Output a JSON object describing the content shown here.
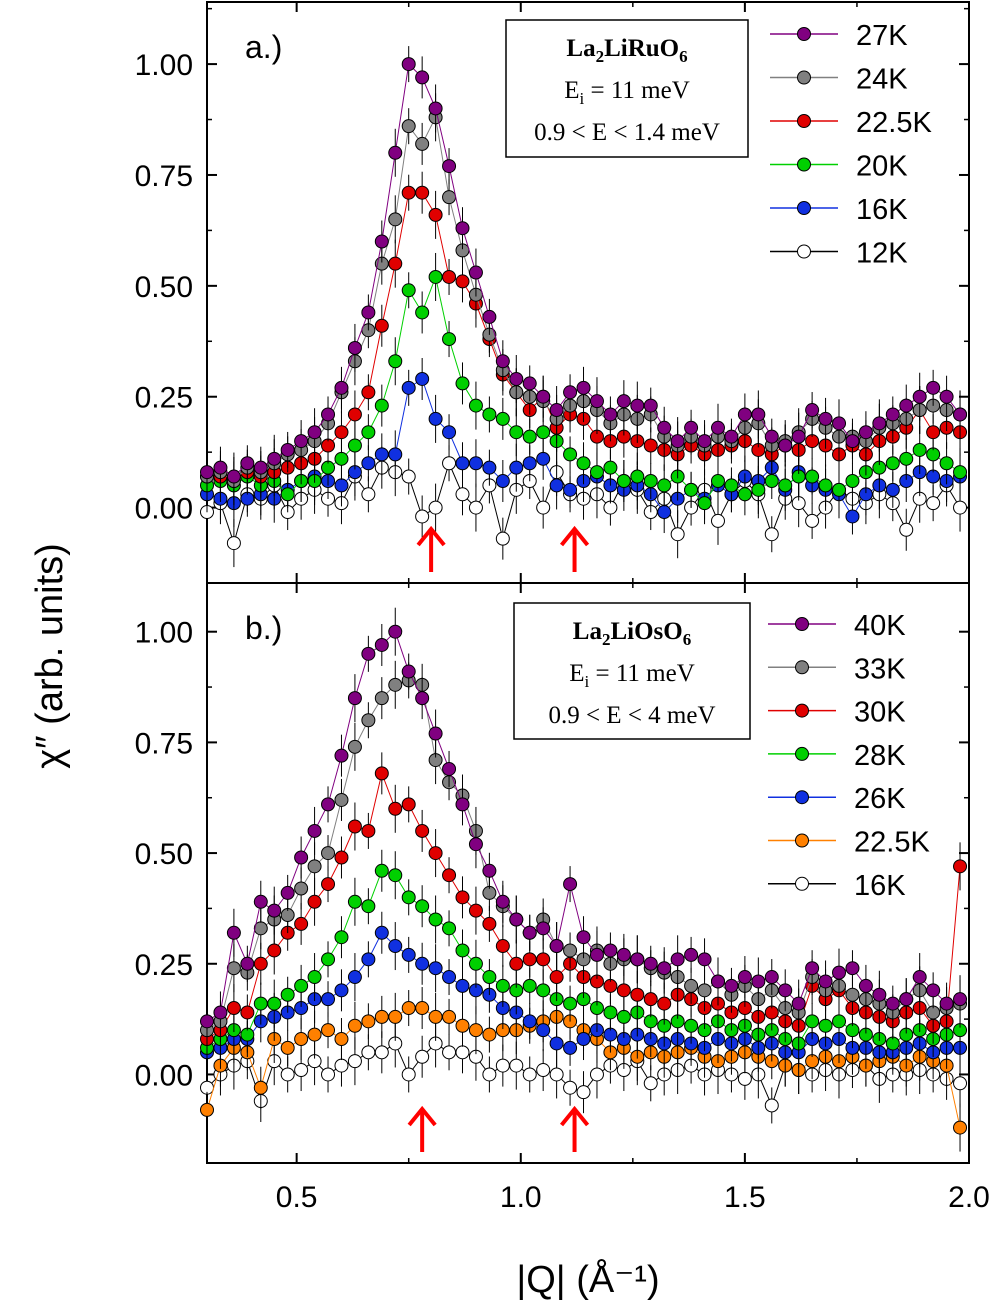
{
  "figure": {
    "xlabel": "|Q| (Å⁻¹)",
    "ylabel": "χ″ (arb. units)"
  },
  "chart_data": [
    {
      "type": "scatter",
      "panel_label": "a.)",
      "compound": {
        "base": "La",
        "sub1": "2",
        "mid": "LiRuO",
        "sub2": "6"
      },
      "info_lines": {
        "ei_prefix": "E",
        "ei_sub": "i",
        "ei_value": " = 11 meV",
        "range": "0.9 < E < 1.4 meV"
      },
      "xlim": [
        0.3,
        2.0
      ],
      "ylim": [
        -0.17,
        1.14
      ],
      "xticks": [
        0.5,
        1.0,
        1.5,
        2.0
      ],
      "yticks": [
        0.0,
        0.25,
        0.5,
        0.75,
        1.0
      ],
      "ytick_labels": [
        "0.00",
        "0.25",
        "0.50",
        "0.75",
        "1.00"
      ],
      "arrows_q": [
        0.8,
        1.12
      ],
      "x": [
        0.3,
        0.33,
        0.36,
        0.39,
        0.42,
        0.45,
        0.48,
        0.51,
        0.54,
        0.57,
        0.6,
        0.63,
        0.66,
        0.69,
        0.72,
        0.75,
        0.78,
        0.81,
        0.84,
        0.87,
        0.9,
        0.93,
        0.96,
        0.99,
        1.02,
        1.05,
        1.08,
        1.11,
        1.14,
        1.17,
        1.2,
        1.23,
        1.26,
        1.29,
        1.32,
        1.35,
        1.38,
        1.41,
        1.44,
        1.47,
        1.5,
        1.53,
        1.56,
        1.59,
        1.62,
        1.65,
        1.68,
        1.71,
        1.74,
        1.77,
        1.8,
        1.83,
        1.86,
        1.89,
        1.92,
        1.95,
        1.98
      ],
      "series": [
        {
          "name": "27K",
          "color": "#800080",
          "open": false,
          "values": [
            0.08,
            0.09,
            0.07,
            0.1,
            0.09,
            0.11,
            0.13,
            0.15,
            0.17,
            0.21,
            0.27,
            0.36,
            0.44,
            0.6,
            0.8,
            1.0,
            0.97,
            0.9,
            0.77,
            0.63,
            0.53,
            0.43,
            0.33,
            0.29,
            0.28,
            0.25,
            0.22,
            0.26,
            0.27,
            0.24,
            0.21,
            0.24,
            0.23,
            0.23,
            0.18,
            0.15,
            0.18,
            0.15,
            0.18,
            0.16,
            0.21,
            0.21,
            0.16,
            0.14,
            0.16,
            0.22,
            0.2,
            0.19,
            0.15,
            0.17,
            0.19,
            0.21,
            0.23,
            0.25,
            0.27,
            0.25,
            0.21
          ]
        },
        {
          "name": "24K",
          "color": "#808080",
          "open": false,
          "values": [
            0.07,
            0.08,
            0.06,
            0.09,
            0.08,
            0.1,
            0.12,
            0.13,
            0.15,
            0.19,
            0.26,
            0.33,
            0.4,
            0.55,
            0.65,
            0.86,
            0.82,
            0.88,
            0.7,
            0.58,
            0.48,
            0.39,
            0.31,
            0.26,
            0.25,
            0.24,
            0.2,
            0.23,
            0.24,
            0.22,
            0.19,
            0.21,
            0.2,
            0.21,
            0.16,
            0.14,
            0.16,
            0.14,
            0.16,
            0.15,
            0.18,
            0.19,
            0.14,
            0.15,
            0.17,
            0.2,
            0.18,
            0.16,
            0.16,
            0.15,
            0.18,
            0.19,
            0.2,
            0.22,
            0.23,
            0.22,
            0.21
          ]
        },
        {
          "name": "22.5K",
          "color": "#e00000",
          "open": false,
          "values": [
            0.07,
            0.07,
            0.06,
            0.08,
            0.07,
            0.08,
            0.09,
            0.1,
            0.11,
            0.14,
            0.17,
            0.21,
            0.26,
            0.41,
            0.55,
            0.71,
            0.71,
            0.66,
            0.52,
            0.51,
            0.46,
            0.38,
            0.3,
            0.26,
            0.22,
            0.25,
            0.18,
            0.21,
            0.2,
            0.16,
            0.15,
            0.16,
            0.15,
            0.14,
            0.13,
            0.12,
            0.14,
            0.12,
            0.13,
            0.14,
            0.15,
            0.13,
            0.12,
            0.14,
            0.13,
            0.15,
            0.14,
            0.12,
            0.14,
            0.12,
            0.15,
            0.16,
            0.18,
            0.22,
            0.17,
            0.18,
            0.17
          ]
        },
        {
          "name": "20K",
          "color": "#00d000",
          "open": false,
          "values": [
            0.05,
            0.06,
            0.05,
            0.07,
            0.05,
            0.06,
            0.03,
            0.06,
            0.06,
            0.09,
            0.11,
            0.14,
            0.17,
            0.23,
            0.33,
            0.49,
            0.44,
            0.52,
            0.38,
            0.28,
            0.23,
            0.21,
            0.2,
            0.17,
            0.16,
            0.17,
            0.15,
            0.12,
            0.1,
            0.08,
            0.09,
            0.06,
            0.07,
            0.06,
            0.05,
            0.07,
            0.04,
            0.01,
            0.06,
            0.05,
            0.03,
            0.04,
            0.06,
            0.05,
            0.07,
            0.07,
            0.05,
            0.04,
            0.06,
            0.08,
            0.09,
            0.1,
            0.11,
            0.13,
            0.12,
            0.1,
            0.08
          ]
        },
        {
          "name": "16K",
          "color": "#1030e0",
          "open": false,
          "values": [
            0.03,
            0.02,
            0.01,
            0.02,
            0.03,
            0.02,
            0.04,
            0.06,
            0.07,
            0.06,
            0.05,
            0.08,
            0.1,
            0.12,
            0.12,
            0.27,
            0.29,
            0.2,
            0.17,
            0.1,
            0.1,
            0.09,
            0.06,
            0.09,
            0.1,
            0.11,
            0.05,
            0.04,
            0.06,
            0.07,
            0.05,
            0.04,
            0.05,
            0.03,
            -0.01,
            0.02,
            0.04,
            0.02,
            0.05,
            0.03,
            0.07,
            0.06,
            0.09,
            0.04,
            0.08,
            0.05,
            0.04,
            0.03,
            -0.02,
            0.03,
            0.05,
            0.04,
            0.06,
            0.08,
            0.07,
            0.06,
            0.07
          ]
        },
        {
          "name": "12K",
          "color": "#000000",
          "open": true,
          "values": [
            -0.01,
            0.01,
            -0.08,
            0.03,
            0.02,
            0.05,
            -0.01,
            0.02,
            0.04,
            0.02,
            0.01,
            0.07,
            0.03,
            0.09,
            0.08,
            0.07,
            -0.02,
            0.0,
            0.1,
            0.03,
            0.0,
            0.05,
            -0.07,
            0.04,
            0.06,
            0.0,
            0.08,
            0.03,
            0.02,
            0.03,
            0.0,
            0.06,
            0.04,
            -0.01,
            0.02,
            -0.06,
            0.0,
            0.04,
            -0.03,
            0.03,
            0.06,
            0.03,
            -0.06,
            0.02,
            0.01,
            -0.03,
            0.0,
            0.04,
            0.02,
            0.01,
            0.03,
            0.01,
            -0.05,
            0.02,
            0.01,
            0.05,
            0.0
          ]
        }
      ]
    },
    {
      "type": "scatter",
      "panel_label": "b.)",
      "compound": {
        "base": "La",
        "sub1": "2",
        "mid": "LiOsO",
        "sub2": "6"
      },
      "info_lines": {
        "ei_prefix": "E",
        "ei_sub": "i",
        "ei_value": " = 11 meV",
        "range": "0.9 < E < 4 meV"
      },
      "xlim": [
        0.3,
        2.0
      ],
      "ylim": [
        -0.2,
        1.11
      ],
      "xticks": [
        0.5,
        1.0,
        1.5,
        2.0
      ],
      "xtick_labels": [
        "0.5",
        "1.0",
        "1.5",
        "2.0"
      ],
      "yticks": [
        0.0,
        0.25,
        0.5,
        0.75,
        1.0
      ],
      "ytick_labels": [
        "0.00",
        "0.25",
        "0.50",
        "0.75",
        "1.00"
      ],
      "arrows_q": [
        0.78,
        1.12
      ],
      "x": [
        0.3,
        0.33,
        0.36,
        0.39,
        0.42,
        0.45,
        0.48,
        0.51,
        0.54,
        0.57,
        0.6,
        0.63,
        0.66,
        0.69,
        0.72,
        0.75,
        0.78,
        0.81,
        0.84,
        0.87,
        0.9,
        0.93,
        0.96,
        0.99,
        1.02,
        1.05,
        1.08,
        1.11,
        1.14,
        1.17,
        1.2,
        1.23,
        1.26,
        1.29,
        1.32,
        1.35,
        1.38,
        1.41,
        1.44,
        1.47,
        1.5,
        1.53,
        1.56,
        1.59,
        1.62,
        1.65,
        1.68,
        1.71,
        1.74,
        1.77,
        1.8,
        1.83,
        1.86,
        1.89,
        1.92,
        1.95,
        1.98
      ],
      "series": [
        {
          "name": "40K",
          "color": "#800080",
          "open": false,
          "values": [
            0.12,
            0.14,
            0.32,
            0.25,
            0.39,
            0.37,
            0.41,
            0.49,
            0.55,
            0.61,
            0.72,
            0.85,
            0.95,
            0.97,
            1.0,
            0.91,
            0.85,
            0.77,
            0.69,
            0.61,
            0.52,
            0.46,
            0.39,
            0.35,
            0.32,
            0.33,
            0.29,
            0.43,
            0.31,
            0.27,
            0.28,
            0.27,
            0.26,
            0.25,
            0.24,
            0.26,
            0.27,
            0.26,
            0.21,
            0.2,
            0.22,
            0.21,
            0.22,
            0.19,
            0.16,
            0.24,
            0.21,
            0.23,
            0.24,
            0.2,
            0.18,
            0.16,
            0.17,
            0.22,
            0.19,
            0.16,
            0.17
          ]
        },
        {
          "name": "33K",
          "color": "#808080",
          "open": false,
          "values": [
            0.1,
            0.12,
            0.24,
            0.23,
            0.33,
            0.35,
            0.36,
            0.42,
            0.47,
            0.5,
            0.62,
            0.74,
            0.8,
            0.85,
            0.88,
            0.89,
            0.88,
            0.71,
            0.66,
            0.63,
            0.55,
            0.41,
            0.38,
            0.35,
            0.32,
            0.35,
            0.29,
            0.28,
            0.26,
            0.28,
            0.25,
            0.26,
            0.26,
            0.24,
            0.23,
            0.22,
            0.2,
            0.19,
            0.21,
            0.18,
            0.2,
            0.17,
            0.19,
            0.15,
            0.14,
            0.22,
            0.19,
            0.2,
            0.18,
            0.17,
            0.16,
            0.14,
            0.17,
            0.19,
            0.14,
            0.15,
            0.16
          ]
        },
        {
          "name": "30K",
          "color": "#e00000",
          "open": false,
          "values": [
            0.08,
            0.1,
            0.15,
            0.14,
            0.25,
            0.28,
            0.32,
            0.34,
            0.39,
            0.43,
            0.49,
            0.56,
            0.55,
            0.68,
            0.6,
            0.61,
            0.55,
            0.5,
            0.45,
            0.4,
            0.37,
            0.34,
            0.29,
            0.25,
            0.26,
            0.26,
            0.22,
            0.25,
            0.22,
            0.21,
            0.2,
            0.19,
            0.18,
            0.17,
            0.16,
            0.18,
            0.17,
            0.15,
            0.16,
            0.14,
            0.15,
            0.13,
            0.14,
            0.12,
            0.11,
            0.2,
            0.17,
            0.19,
            0.15,
            0.14,
            0.13,
            0.12,
            0.14,
            0.15,
            0.11,
            0.12,
            0.47
          ]
        },
        {
          "name": "28K",
          "color": "#00d000",
          "open": false,
          "values": [
            0.06,
            0.08,
            0.1,
            0.09,
            0.16,
            0.16,
            0.18,
            0.2,
            0.22,
            0.26,
            0.31,
            0.39,
            0.38,
            0.46,
            0.45,
            0.4,
            0.38,
            0.35,
            0.33,
            0.28,
            0.25,
            0.22,
            0.2,
            0.19,
            0.2,
            0.19,
            0.17,
            0.16,
            0.17,
            0.15,
            0.14,
            0.13,
            0.14,
            0.12,
            0.11,
            0.12,
            0.11,
            0.1,
            0.12,
            0.1,
            0.11,
            0.09,
            0.1,
            0.08,
            0.07,
            0.12,
            0.11,
            0.12,
            0.1,
            0.09,
            0.08,
            0.07,
            0.09,
            0.1,
            0.08,
            0.09,
            0.1
          ]
        },
        {
          "name": "26K",
          "color": "#1030e0",
          "open": false,
          "values": [
            0.05,
            0.06,
            0.08,
            0.08,
            0.12,
            0.13,
            0.14,
            0.15,
            0.17,
            0.17,
            0.19,
            0.22,
            0.26,
            0.32,
            0.29,
            0.27,
            0.25,
            0.24,
            0.22,
            0.2,
            0.19,
            0.18,
            0.15,
            0.14,
            0.12,
            0.1,
            0.07,
            0.06,
            0.08,
            0.1,
            0.09,
            0.08,
            0.09,
            0.08,
            0.07,
            0.08,
            0.07,
            0.06,
            0.08,
            0.07,
            0.08,
            0.06,
            0.07,
            0.05,
            0.05,
            0.08,
            0.07,
            0.08,
            0.06,
            0.06,
            0.05,
            0.05,
            0.06,
            0.07,
            0.05,
            0.06,
            0.06
          ]
        },
        {
          "name": "22.5K",
          "color": "#ff8000",
          "open": false,
          "values": [
            -0.08,
            0.02,
            0.06,
            0.05,
            -0.03,
            0.08,
            0.06,
            0.08,
            0.09,
            0.1,
            0.08,
            0.11,
            0.12,
            0.13,
            0.13,
            0.15,
            0.15,
            0.13,
            0.13,
            0.11,
            0.1,
            0.09,
            0.1,
            0.1,
            0.11,
            0.12,
            0.13,
            0.12,
            0.1,
            0.08,
            0.05,
            0.06,
            0.04,
            0.05,
            0.04,
            0.05,
            0.06,
            0.04,
            0.03,
            0.04,
            0.05,
            0.04,
            0.03,
            0.02,
            0.01,
            0.03,
            0.04,
            0.03,
            0.04,
            0.02,
            0.03,
            0.04,
            0.02,
            0.04,
            0.03,
            0.02,
            -0.12
          ]
        },
        {
          "name": "16K",
          "color": "#000000",
          "open": true,
          "values": [
            -0.03,
            0.0,
            0.02,
            0.03,
            -0.06,
            0.03,
            0.0,
            0.01,
            0.03,
            0.0,
            0.02,
            0.03,
            0.05,
            0.05,
            0.07,
            0.0,
            0.04,
            0.07,
            0.05,
            0.05,
            0.04,
            0.0,
            0.02,
            0.02,
            0.0,
            0.01,
            0.0,
            -0.03,
            -0.04,
            0.0,
            0.02,
            0.01,
            0.03,
            -0.02,
            0.0,
            0.01,
            0.02,
            0.0,
            0.01,
            0.0,
            -0.01,
            0.0,
            -0.07,
            0.02,
            0.01,
            0.0,
            0.01,
            0.0,
            0.01,
            0.02,
            -0.01,
            0.0,
            0.0,
            0.01,
            0.0,
            -0.01,
            -0.02
          ]
        }
      ]
    }
  ]
}
